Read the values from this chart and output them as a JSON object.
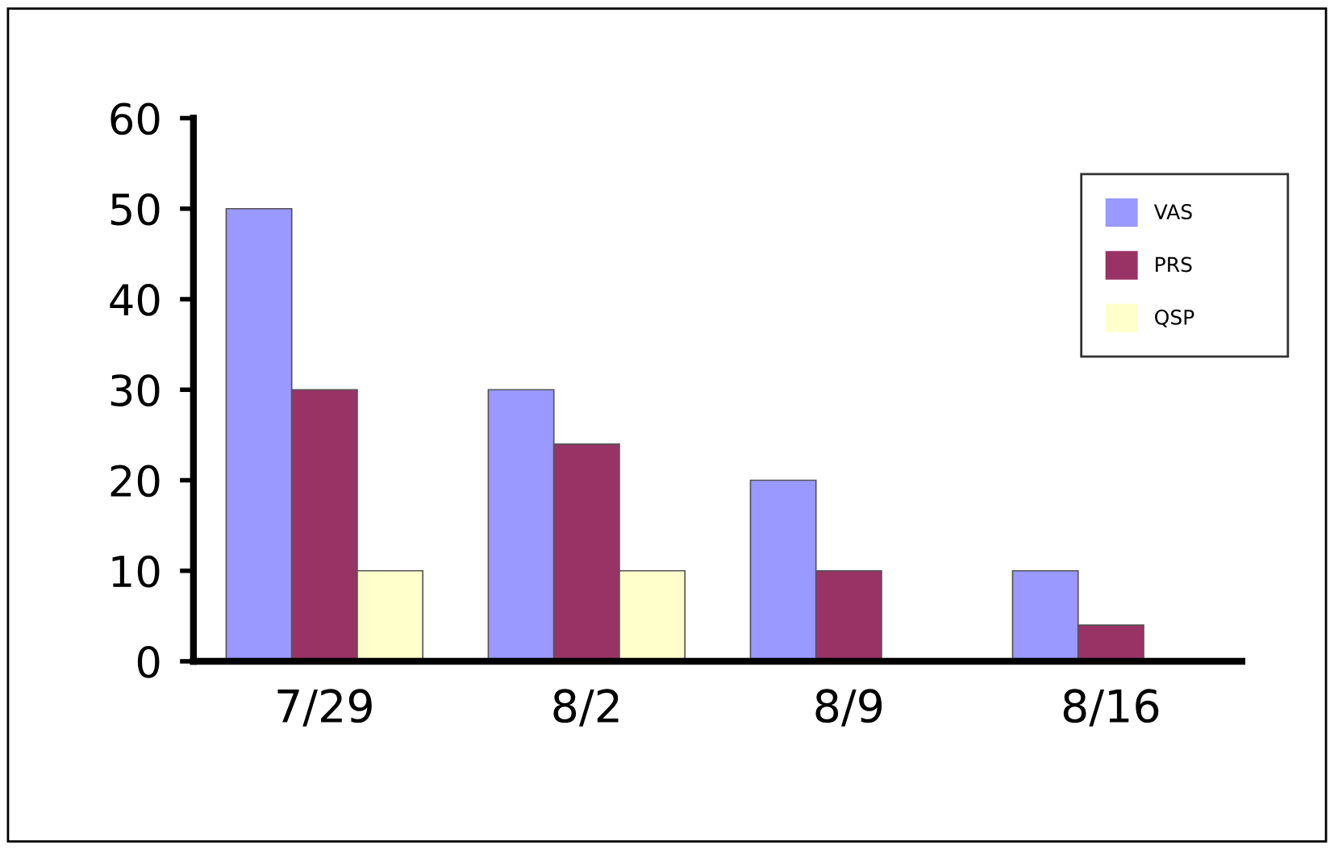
{
  "chart_data": {
    "type": "bar",
    "categories": [
      "7/29",
      "8/2",
      "8/9",
      "8/16"
    ],
    "series": [
      {
        "name": "VAS",
        "color": "#9999ff",
        "values": [
          50,
          30,
          20,
          10
        ]
      },
      {
        "name": "PRS",
        "color": "#993366",
        "values": [
          30,
          24,
          10,
          4
        ]
      },
      {
        "name": "QSP",
        "color": "#ffffcc",
        "values": [
          10,
          10,
          null,
          null
        ]
      }
    ],
    "ylim": [
      0,
      60
    ],
    "yticks": [
      0,
      10,
      20,
      30,
      40,
      50,
      60
    ],
    "grid": false,
    "legend": "top right"
  }
}
